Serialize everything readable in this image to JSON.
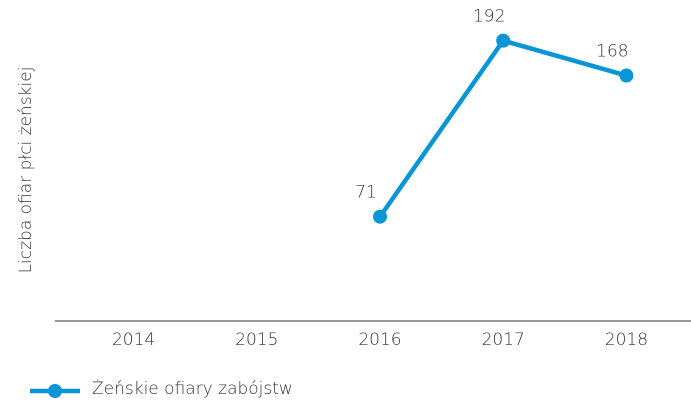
{
  "chart_data": {
    "type": "line",
    "y_label": "Liczba ofiar płci żeńskiej",
    "categories": [
      "2014",
      "2015",
      "2016",
      "2017",
      "2018"
    ],
    "series": [
      {
        "name": "Żeńskie ofiary zabójstw",
        "color": "#0a96d6",
        "values": [
          null,
          null,
          71,
          192,
          168
        ]
      }
    ],
    "ylim": [
      0,
      200
    ],
    "legend": "bottom-left"
  }
}
